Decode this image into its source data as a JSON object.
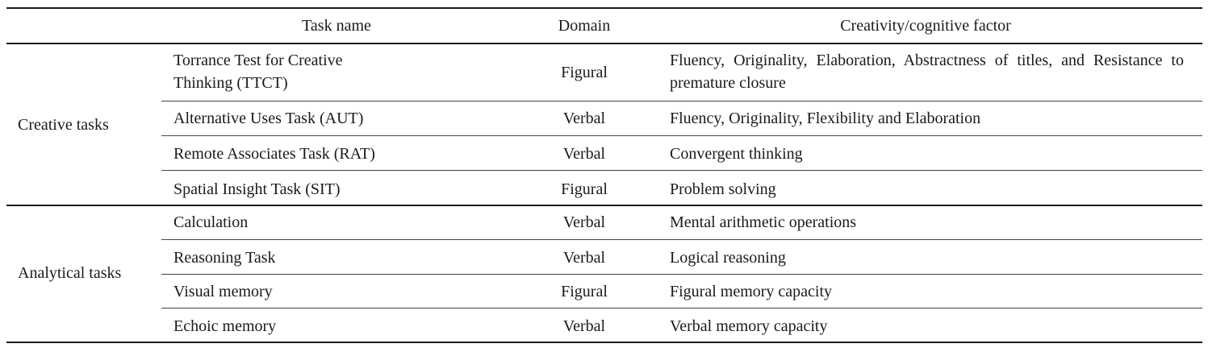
{
  "table": {
    "headers": {
      "group": "",
      "task_name": "Task name",
      "domain": "Domain",
      "factor": "Creativity/cognitive factor"
    },
    "groups": [
      {
        "label": "Creative tasks",
        "rows": [
          {
            "task_line1": "Torrance Test for Creative",
            "task_line2": "Thinking (TTCT)",
            "domain": "Figural",
            "factor": "Fluency, Originality, Elaboration, Abstractness of titles, and Resistance to premature closure"
          },
          {
            "task": "Alternative Uses Task (AUT)",
            "domain": "Verbal",
            "factor": "Fluency, Originality, Flexibility and Elaboration"
          },
          {
            "task": "Remote Associates Task (RAT)",
            "domain": "Verbal",
            "factor": "Convergent thinking"
          },
          {
            "task": "Spatial Insight Task (SIT)",
            "domain": "Figural",
            "factor": "Problem solving"
          }
        ]
      },
      {
        "label": "Analytical tasks",
        "rows": [
          {
            "task": "Calculation",
            "domain": "Verbal",
            "factor": "Mental arithmetic operations"
          },
          {
            "task": "Reasoning Task",
            "domain": "Verbal",
            "factor": "Logical reasoning"
          },
          {
            "task": "Visual memory",
            "domain": "Figural",
            "factor": "Figural memory capacity"
          },
          {
            "task": "Echoic memory",
            "domain": "Verbal",
            "factor": "Verbal memory capacity"
          }
        ]
      }
    ]
  }
}
